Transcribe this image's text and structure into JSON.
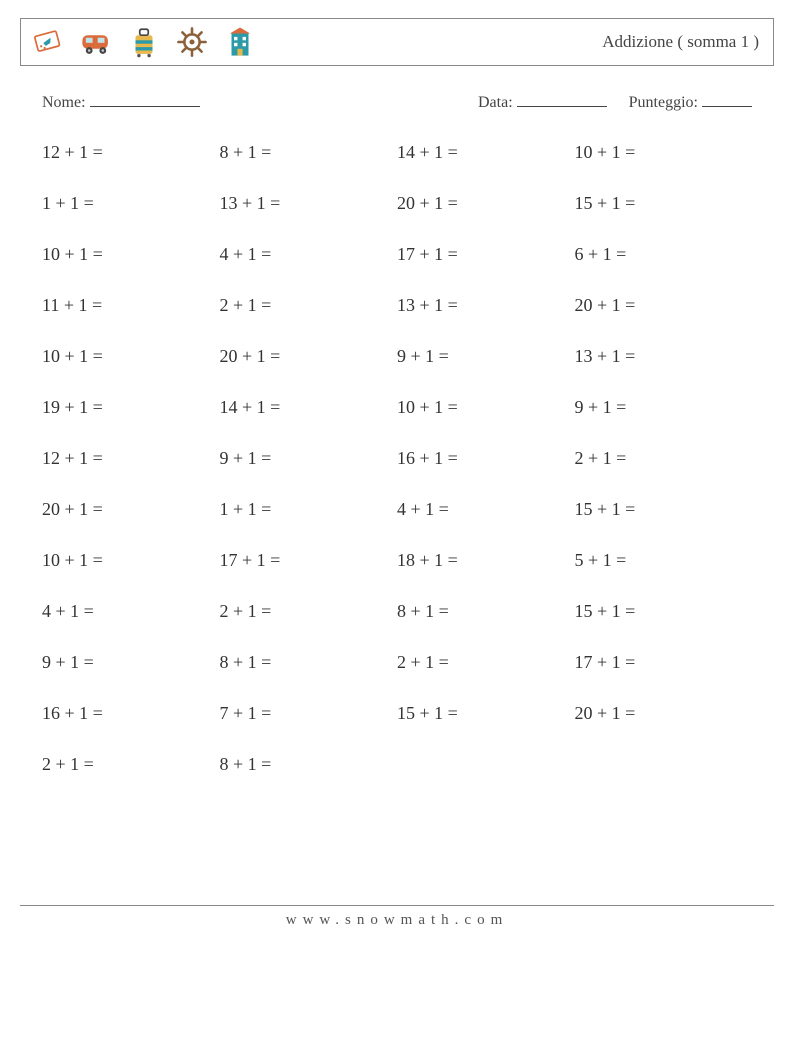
{
  "header": {
    "title": "Addizione ( somma 1 )",
    "icons": [
      "plane-ticket-icon",
      "rv-icon",
      "suitcase-icon",
      "ship-wheel-icon",
      "hotel-icon"
    ]
  },
  "info": {
    "name_label": "Nome:",
    "date_label": "Data:",
    "score_label": "Punteggio:",
    "blank_widths": {
      "name": 110,
      "date": 90,
      "score": 50
    }
  },
  "problems": {
    "columns": 4,
    "rows": [
      [
        "12 + 1 =",
        "8 + 1 =",
        "14 + 1 =",
        "10 + 1 ="
      ],
      [
        "1 + 1 =",
        "13 + 1 =",
        "20 + 1 =",
        "15 + 1 ="
      ],
      [
        "10 + 1 =",
        "4 + 1 =",
        "17 + 1 =",
        "6 + 1 ="
      ],
      [
        "11 + 1 =",
        "2 + 1 =",
        "13 + 1 =",
        "20 + 1 ="
      ],
      [
        "10 + 1 =",
        "20 + 1 =",
        "9 + 1 =",
        "13 + 1 ="
      ],
      [
        "19 + 1 =",
        "14 + 1 =",
        "10 + 1 =",
        "9 + 1 ="
      ],
      [
        "12 + 1 =",
        "9 + 1 =",
        "16 + 1 =",
        "2 + 1 ="
      ],
      [
        "20 + 1 =",
        "1 + 1 =",
        "4 + 1 =",
        "15 + 1 ="
      ],
      [
        "10 + 1 =",
        "17 + 1 =",
        "18 + 1 =",
        "5 + 1 ="
      ],
      [
        "4 + 1 =",
        "2 + 1 =",
        "8 + 1 =",
        "15 + 1 ="
      ],
      [
        "9 + 1 =",
        "8 + 1 =",
        "2 + 1 =",
        "17 + 1 ="
      ],
      [
        "16 + 1 =",
        "7 + 1 =",
        "15 + 1 =",
        "20 + 1 ="
      ],
      [
        "2 + 1 =",
        "8 + 1 =",
        "",
        ""
      ]
    ],
    "font_size": 18,
    "row_gap": 30
  },
  "footer": {
    "text": "www.snowmath.com",
    "letter_spacing": 6
  },
  "colors": {
    "border": "#888888",
    "text": "#333333",
    "icon_orange": "#db6b3a",
    "icon_teal": "#2d9aa8",
    "icon_yellow": "#e6b84e",
    "icon_brown": "#8a613a",
    "icon_blue": "#3a7cc4"
  }
}
